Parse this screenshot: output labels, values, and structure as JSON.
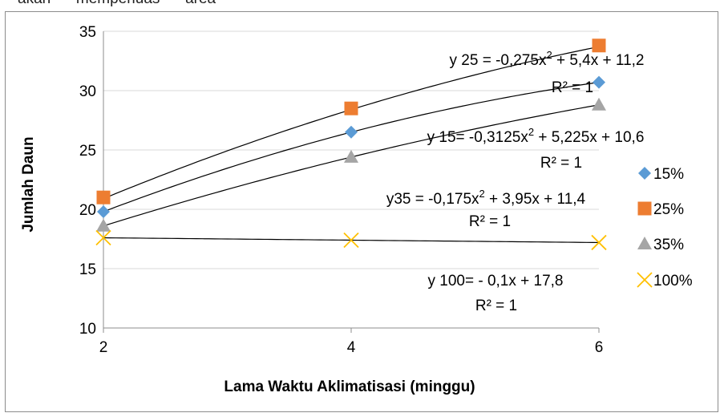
{
  "page_fragment": "akan      memperluas      area",
  "chart_data": {
    "type": "scatter",
    "xlabel": "Lama Waktu Aklimatisasi  (minggu)",
    "ylabel": "Jumlah Daun",
    "xlim": [
      2,
      6
    ],
    "ylim": [
      10,
      35
    ],
    "x_ticks": [
      "2",
      "4",
      "6"
    ],
    "y_ticks": [
      "10",
      "15",
      "20",
      "25",
      "30",
      "35"
    ],
    "grid": "horizontal major gridlines",
    "legend_position": "right",
    "series": [
      {
        "name": "15%",
        "marker": "diamond",
        "color": "#5b9bd5",
        "points": [
          [
            2,
            19.8
          ],
          [
            4,
            26.5
          ],
          [
            6,
            30.7
          ]
        ],
        "trend": {
          "kind": "poly2",
          "a": -0.3125,
          "b": 5.225,
          "c": 10.6
        }
      },
      {
        "name": "25%",
        "marker": "square",
        "color": "#ed7d31",
        "points": [
          [
            2,
            21.0
          ],
          [
            4,
            28.5
          ],
          [
            6,
            33.8
          ]
        ],
        "trend": {
          "kind": "poly2",
          "a": -0.275,
          "b": 5.4,
          "c": 11.2
        }
      },
      {
        "name": "35%",
        "marker": "triangle",
        "color": "#a5a5a5",
        "points": [
          [
            2,
            18.6
          ],
          [
            4,
            24.4
          ],
          [
            6,
            28.8
          ]
        ],
        "trend": {
          "kind": "poly2",
          "a": -0.175,
          "b": 3.95,
          "c": 11.4
        }
      },
      {
        "name": "100%",
        "marker": "x",
        "color": "#ffc000",
        "points": [
          [
            2,
            17.6
          ],
          [
            4,
            17.4
          ],
          [
            6,
            17.2
          ]
        ],
        "trend": {
          "kind": "linear",
          "a": 0,
          "b": -0.1,
          "c": 17.8
        }
      }
    ],
    "annotations": [
      {
        "id": "eq25",
        "line1_pre": "y 25 = -0,275x",
        "sup": "2",
        "line1_post": " + 5,4x + 11,2",
        "line2": "R² = 1"
      },
      {
        "id": "eq15",
        "line1_pre": "y 15= -0,3125x",
        "sup": "2",
        "line1_post": " + 5,225x + 10,6",
        "line2": "R² = 1"
      },
      {
        "id": "eq35",
        "line1_pre": "y35 = -0,175x",
        "sup": "2",
        "line1_post": " + 3,95x + 11,4",
        "line2": "R² = 1"
      },
      {
        "id": "eq100",
        "line1_pre": "y 100=  - 0,1x + 17,8",
        "sup": "",
        "line1_post": "",
        "line2": "R² = 1"
      }
    ]
  }
}
